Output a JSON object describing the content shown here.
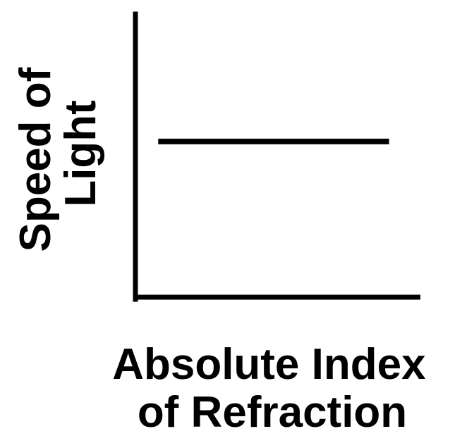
{
  "chart_data": {
    "type": "line",
    "title": "",
    "xlabel_lines": [
      "Absolute Index",
      "of Refraction"
    ],
    "ylabel_lines": [
      "Speed of",
      "Light"
    ],
    "xlim": [
      0,
      1
    ],
    "ylim": [
      0,
      1
    ],
    "grid": false,
    "ticks": false,
    "series": [
      {
        "x": [
          0.08,
          0.89
        ],
        "y": [
          0.55,
          0.55
        ],
        "color": "#000000"
      }
    ]
  }
}
